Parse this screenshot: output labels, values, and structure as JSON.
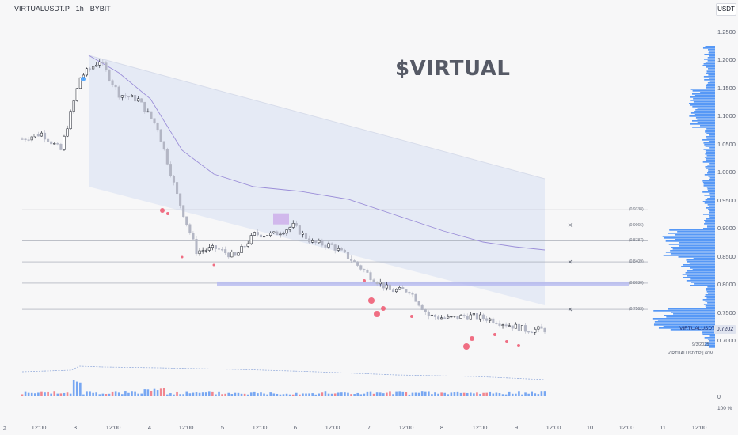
{
  "header": {
    "symbol_line": "VIRTUALUSDT.P · 1h · BYBIT",
    "currency": "USDT"
  },
  "watermark": "$VIRTUAL",
  "price_axis": {
    "ticks": [
      "1.2500",
      "1.2000",
      "1.1500",
      "1.1000",
      "1.0500",
      "1.0000",
      "0.9500",
      "0.9000",
      "0.8500",
      "0.8000",
      "0.7500",
      "0.7000"
    ],
    "tick_values": [
      1.25,
      1.2,
      1.15,
      1.1,
      1.05,
      1.0,
      0.95,
      0.9,
      0.85,
      0.8,
      0.75,
      0.7
    ],
    "last_price": "0.7202",
    "last_price_value": 0.7202,
    "symbol_label": "VIRTUALUSDT.P"
  },
  "time_axis": {
    "labels": [
      "12:00",
      "3",
      "12:00",
      "4",
      "12:00",
      "5",
      "12:00",
      "6",
      "12:00",
      "7",
      "12:00",
      "8",
      "12:00",
      "9",
      "12:00",
      "10",
      "12:00",
      "11",
      "12:00"
    ]
  },
  "fib_levels": [
    "(0.9338)",
    "(0.9066)",
    "(0.8787)",
    "(0.8409)",
    "(0.8030)",
    "(0.7563)"
  ],
  "fib_values": [
    0.9338,
    0.9066,
    0.8787,
    0.8409,
    0.803,
    0.7563
  ],
  "footer": {
    "date": "9/3/2025",
    "vp_legend": "VIRTUALUSDT.P | 60M",
    "vol_zero": "0",
    "pct_label": "100 %",
    "z_label": "Z"
  },
  "colors": {
    "up": "#131722",
    "down": "#b3b6c4",
    "bubble": "#ee5e76",
    "bubble_blue": "#4aa3ff",
    "profile": "#2d7ff5",
    "band": "#dfe6f4",
    "ma": "#9b8ed8",
    "zone": "#b9bcf0"
  },
  "chart_data": {
    "type": "candlestick",
    "symbol": "VIRTUALUSDT.P",
    "interval": "1h",
    "exchange": "BYBIT",
    "y_range": [
      0.685,
      1.26
    ],
    "approx_close_path": [
      {
        "t": "2 12:00",
        "close": 1.06
      },
      {
        "t": "2 18:00",
        "close": 1.07
      },
      {
        "t": "3 00:00",
        "close": 1.04
      },
      {
        "t": "3 06:00",
        "close": 1.17
      },
      {
        "t": "3 12:00",
        "close": 1.2
      },
      {
        "t": "3 18:00",
        "close": 1.14
      },
      {
        "t": "4 00:00",
        "close": 1.13
      },
      {
        "t": "4 06:00",
        "close": 1.08
      },
      {
        "t": "4 12:00",
        "close": 0.96
      },
      {
        "t": "4 18:00",
        "close": 0.86
      },
      {
        "t": "5 00:00",
        "close": 0.865
      },
      {
        "t": "5 06:00",
        "close": 0.85
      },
      {
        "t": "5 12:00",
        "close": 0.89
      },
      {
        "t": "5 18:00",
        "close": 0.89
      },
      {
        "t": "6 00:00",
        "close": 0.905
      },
      {
        "t": "6 06:00",
        "close": 0.875
      },
      {
        "t": "6 12:00",
        "close": 0.87
      },
      {
        "t": "6 18:00",
        "close": 0.845
      },
      {
        "t": "7 00:00",
        "close": 0.815
      },
      {
        "t": "7 06:00",
        "close": 0.79
      },
      {
        "t": "7 12:00",
        "close": 0.79
      },
      {
        "t": "7 18:00",
        "close": 0.745
      },
      {
        "t": "8 00:00",
        "close": 0.74
      },
      {
        "t": "8 06:00",
        "close": 0.745
      },
      {
        "t": "8 12:00",
        "close": 0.74
      },
      {
        "t": "8 18:00",
        "close": 0.73
      },
      {
        "t": "9 00:00",
        "close": 0.72
      },
      {
        "t": "9 06:00",
        "close": 0.7202
      }
    ]
  }
}
